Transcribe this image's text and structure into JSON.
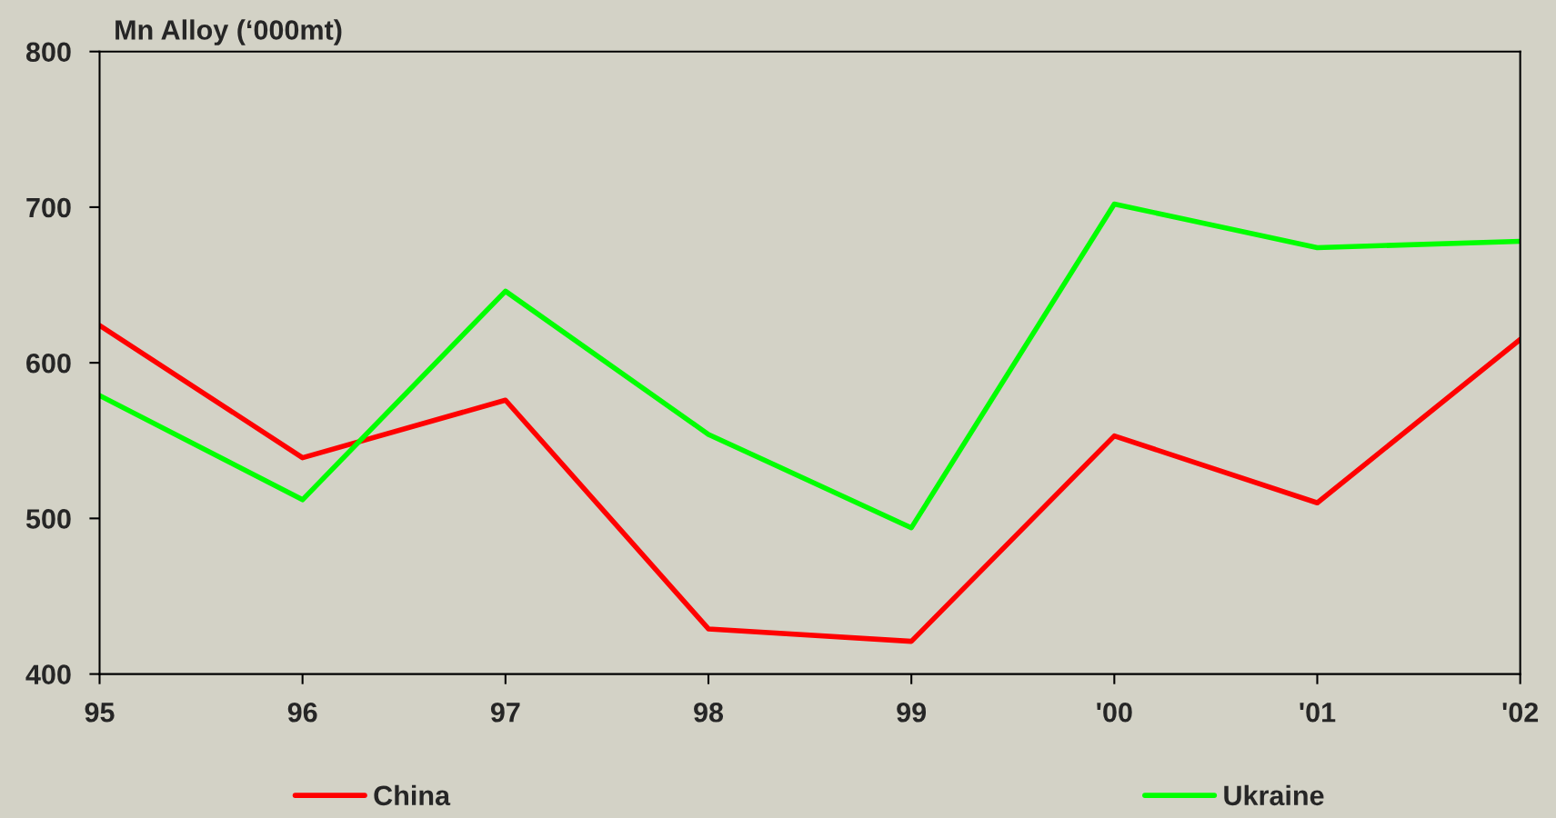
{
  "chart_data": {
    "type": "line",
    "ylabel": "Mn Alloy (‘000mt)",
    "categories": [
      "95",
      "96",
      "97",
      "98",
      "99",
      "'00",
      "'01",
      "'02"
    ],
    "series": [
      {
        "name": "China",
        "color": "#ff0000",
        "values": [
          624,
          539,
          576,
          429,
          421,
          553,
          510,
          615
        ]
      },
      {
        "name": "Ukraine",
        "color": "#00ff00",
        "values": [
          579,
          512,
          646,
          554,
          494,
          702,
          674,
          678
        ]
      }
    ],
    "ylim": [
      400,
      800
    ],
    "yticks": [
      400,
      500,
      600,
      700,
      800
    ],
    "grid": false,
    "legend": "bottom",
    "marker": "none",
    "line_style": "solid"
  }
}
